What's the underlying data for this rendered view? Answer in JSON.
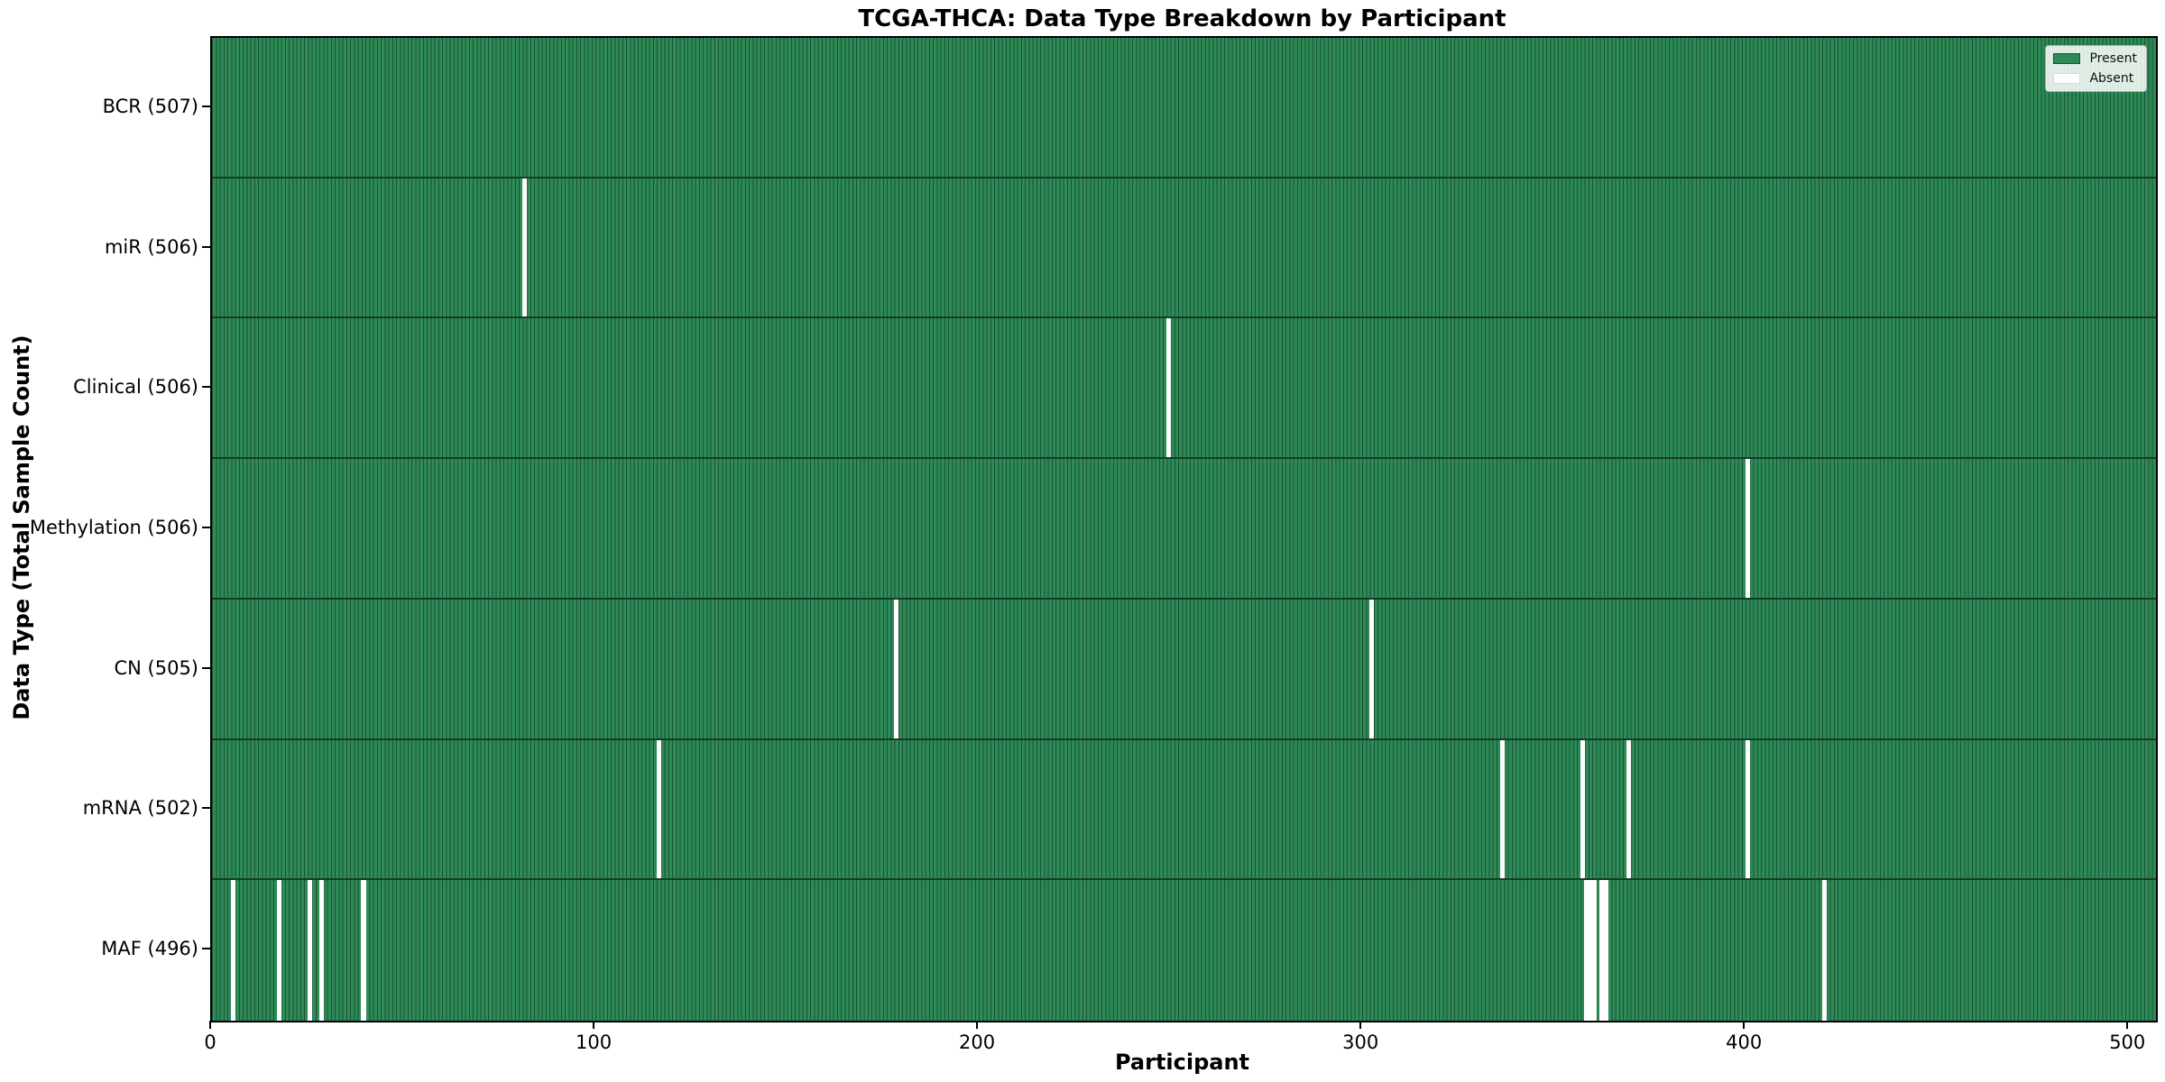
{
  "chart_data": {
    "type": "heatmap",
    "title": "TCGA-THCA: Data Type Breakdown by Participant",
    "xlabel": "Participant",
    "ylabel": "Data Type (Total Sample Count)",
    "legend": [
      "Present",
      "Absent"
    ],
    "legend_position": "upper right",
    "n_participants": 507,
    "x_ticks": [
      0,
      100,
      200,
      300,
      400,
      500
    ],
    "colors": {
      "present": "#2E8B57",
      "absent": "#FFFFFF",
      "bar_edge": "#1A5233",
      "row_divider": "#143D27",
      "spine": "#000000"
    },
    "rows": [
      {
        "label": "BCR (507)",
        "data_type": "BCR",
        "total_sample_count": 507,
        "absent_participants": []
      },
      {
        "label": "miR (506)",
        "data_type": "miR",
        "total_sample_count": 506,
        "absent_participants": [
          81
        ]
      },
      {
        "label": "Clinical (506)",
        "data_type": "Clinical",
        "total_sample_count": 506,
        "absent_participants": [
          249
        ]
      },
      {
        "label": "Methylation (506)",
        "data_type": "Methylation",
        "total_sample_count": 506,
        "absent_participants": [
          400
        ]
      },
      {
        "label": "CN (505)",
        "data_type": "CN",
        "total_sample_count": 505,
        "absent_participants": [
          178,
          302
        ]
      },
      {
        "label": "mRNA (502)",
        "data_type": "mRNA",
        "total_sample_count": 502,
        "absent_participants": [
          116,
          336,
          357,
          369,
          400
        ]
      },
      {
        "label": "MAF (496)",
        "data_type": "MAF",
        "total_sample_count": 496,
        "absent_participants": [
          5,
          17,
          25,
          28,
          39,
          358,
          359,
          360,
          362,
          363,
          420
        ]
      }
    ]
  }
}
